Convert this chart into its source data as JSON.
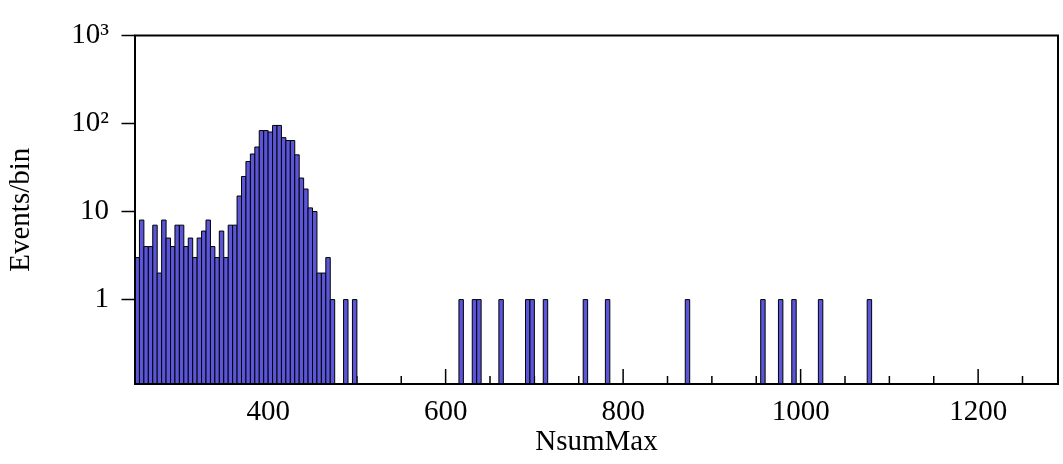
{
  "chart_data": {
    "type": "histogram",
    "xlabel": "NsumMax",
    "ylabel": "Events/bin",
    "color": "#5a55d9",
    "log": "y",
    "grid": false,
    "legend": false,
    "xlim": [
      250,
      1290
    ],
    "xticks": [
      {
        "value": 250,
        "label": null
      },
      {
        "value": 300,
        "label": null
      },
      {
        "value": 350,
        "label": null
      },
      400,
      {
        "value": 450,
        "label": null
      },
      {
        "value": 500,
        "label": null
      },
      {
        "value": 550,
        "label": null
      },
      600,
      {
        "value": 650,
        "label": null
      },
      {
        "value": 700,
        "label": null
      },
      {
        "value": 750,
        "label": null
      },
      800,
      {
        "value": 850,
        "label": null
      },
      {
        "value": 900,
        "label": null
      },
      {
        "value": 950,
        "label": null
      },
      1000,
      {
        "value": 1050,
        "label": null
      },
      {
        "value": 1100,
        "label": null
      },
      {
        "value": 1150,
        "label": null
      },
      1200,
      {
        "value": 1250,
        "label": null
      }
    ],
    "ylim": [
      0.11,
      1000
    ],
    "yticks": [
      1,
      10,
      {
        "value": 100,
        "label": "10²"
      },
      {
        "value": 1000,
        "label": "10³"
      }
    ],
    "bins": [
      250,
      255,
      260,
      265,
      270,
      275,
      280,
      285,
      290,
      295,
      300,
      305,
      310,
      315,
      320,
      325,
      330,
      335,
      340,
      345,
      350,
      355,
      360,
      365,
      370,
      375,
      380,
      385,
      390,
      395,
      400,
      405,
      410,
      415,
      420,
      425,
      430,
      435,
      440,
      445,
      450,
      455,
      460,
      465,
      470,
      475,
      480,
      485,
      490,
      495,
      500,
      505,
      510,
      515,
      520,
      525,
      530,
      535,
      540,
      545,
      550,
      555,
      560,
      565,
      570,
      575,
      580,
      585,
      590,
      595,
      600,
      605,
      610,
      615,
      620,
      625,
      630,
      635,
      640,
      645,
      650,
      655,
      660,
      665,
      670,
      675,
      680,
      685,
      690,
      695,
      700,
      705,
      710,
      715,
      720,
      725,
      730,
      735,
      740,
      745,
      750,
      755,
      760,
      765,
      770,
      775,
      780,
      785,
      790,
      795,
      800,
      805,
      810,
      815,
      820,
      825,
      830,
      835,
      840,
      845,
      850,
      855,
      860,
      865,
      870,
      875,
      880,
      885,
      890,
      895,
      900,
      905,
      910,
      915,
      920,
      925,
      930,
      935,
      940,
      945,
      950,
      955,
      960,
      965,
      970,
      975,
      980,
      985,
      990,
      995,
      1000,
      1005,
      1010,
      1015,
      1020,
      1025,
      1030,
      1035,
      1040,
      1045,
      1050,
      1055,
      1060,
      1065,
      1070,
      1075,
      1080
    ],
    "values": [
      3,
      8,
      4,
      4,
      7,
      2,
      8,
      5,
      4,
      7,
      7,
      4,
      5,
      3,
      5,
      6,
      8,
      4,
      3,
      6,
      3,
      7,
      7,
      15,
      25,
      37,
      45,
      54,
      83,
      83,
      80,
      95,
      95,
      69,
      64,
      64,
      44,
      24,
      18,
      11,
      10,
      2,
      2,
      3,
      1,
      null,
      null,
      1,
      null,
      1,
      null,
      null,
      null,
      null,
      null,
      null,
      null,
      null,
      null,
      null,
      null,
      null,
      null,
      null,
      null,
      null,
      null,
      null,
      null,
      null,
      null,
      null,
      null,
      1,
      null,
      null,
      1,
      1,
      null,
      null,
      null,
      null,
      1,
      null,
      null,
      null,
      null,
      null,
      1,
      1,
      null,
      null,
      1,
      null,
      null,
      null,
      null,
      null,
      null,
      null,
      null,
      1,
      null,
      null,
      null,
      null,
      1,
      null,
      null,
      null,
      null,
      null,
      null,
      null,
      null,
      null,
      null,
      null,
      null,
      null,
      null,
      null,
      null,
      null,
      1,
      null,
      null,
      null,
      null,
      null,
      null,
      null,
      null,
      null,
      null,
      null,
      null,
      null,
      null,
      null,
      null,
      1,
      null,
      null,
      null,
      1,
      null,
      null,
      1,
      null,
      null,
      null,
      null,
      null,
      1,
      null,
      null,
      null,
      null,
      null,
      null,
      null,
      null,
      null,
      null,
      1
    ]
  }
}
